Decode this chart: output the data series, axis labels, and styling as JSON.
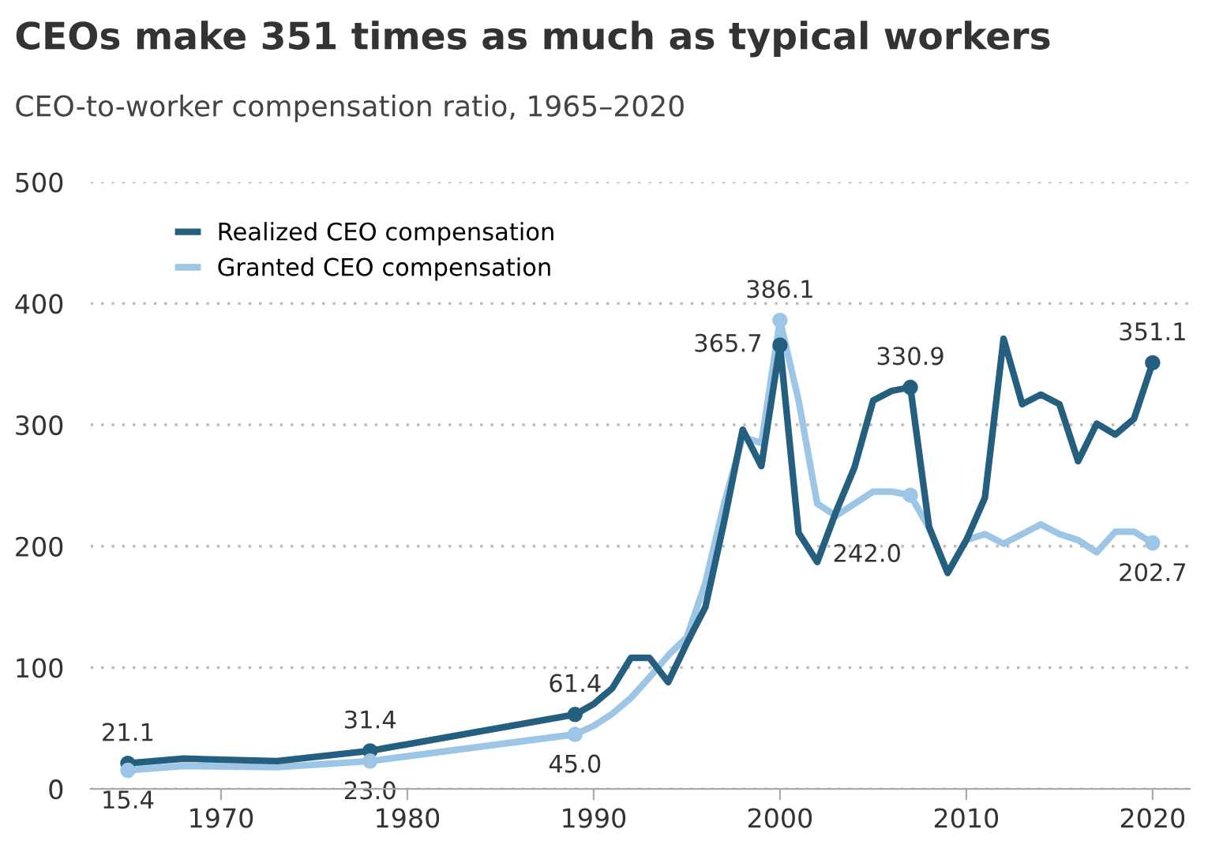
{
  "chart_data": {
    "type": "line",
    "title": "CEOs make 351 times as much as typical workers",
    "subtitle": "CEO-to-worker compensation ratio, 1965–2020",
    "x": [
      1965,
      1968,
      1973,
      1978,
      1989,
      1990,
      1991,
      1992,
      1993,
      1994,
      1995,
      1996,
      1997,
      1998,
      1999,
      2000,
      2001,
      2002,
      2003,
      2004,
      2005,
      2006,
      2007,
      2008,
      2009,
      2010,
      2011,
      2012,
      2013,
      2014,
      2015,
      2016,
      2017,
      2018,
      2019,
      2020
    ],
    "series": [
      {
        "name": "Realized CEO compensation",
        "color": "#245f80",
        "values": [
          21.1,
          25,
          23,
          31.4,
          61.4,
          70,
          83,
          108,
          108,
          88,
          120,
          150,
          220,
          296,
          266,
          365.7,
          211,
          187,
          228,
          265,
          320,
          328,
          330.9,
          216,
          178,
          205,
          240,
          371,
          317,
          325,
          317,
          270,
          301,
          292,
          305,
          351.1
        ],
        "value_labels": [
          "21.1",
          null,
          null,
          "31.4",
          "61.4",
          null,
          null,
          null,
          null,
          null,
          null,
          null,
          null,
          null,
          null,
          "365.7",
          null,
          null,
          null,
          null,
          null,
          null,
          "330.9",
          null,
          null,
          null,
          null,
          null,
          null,
          null,
          null,
          null,
          null,
          null,
          null,
          "351.1"
        ]
      },
      {
        "name": "Granted CEO compensation",
        "color": "#9cc5e6",
        "values": [
          15.4,
          19,
          18,
          23.0,
          45.0,
          52,
          62,
          75,
          92,
          110,
          125,
          170,
          235,
          290,
          285,
          386.1,
          320,
          235,
          225,
          235,
          245,
          245,
          242.0,
          215,
          178,
          205,
          210,
          202,
          210,
          218,
          210,
          205,
          195,
          212,
          212,
          202.7
        ],
        "value_labels": [
          "15.4",
          null,
          null,
          "23.0",
          "45.0",
          null,
          null,
          null,
          null,
          null,
          null,
          null,
          null,
          null,
          null,
          "386.1",
          null,
          null,
          null,
          null,
          null,
          null,
          "242.0",
          null,
          null,
          null,
          null,
          null,
          null,
          null,
          null,
          null,
          null,
          null,
          null,
          "202.7"
        ]
      }
    ],
    "xlim": [
      1963,
      2022
    ],
    "xticks": [
      1970,
      1980,
      1990,
      2000,
      2010,
      2020
    ],
    "ylim": [
      0,
      500
    ],
    "yticks": [
      0,
      100,
      200,
      300,
      400,
      500
    ],
    "grid": "y",
    "legend": "top left"
  }
}
